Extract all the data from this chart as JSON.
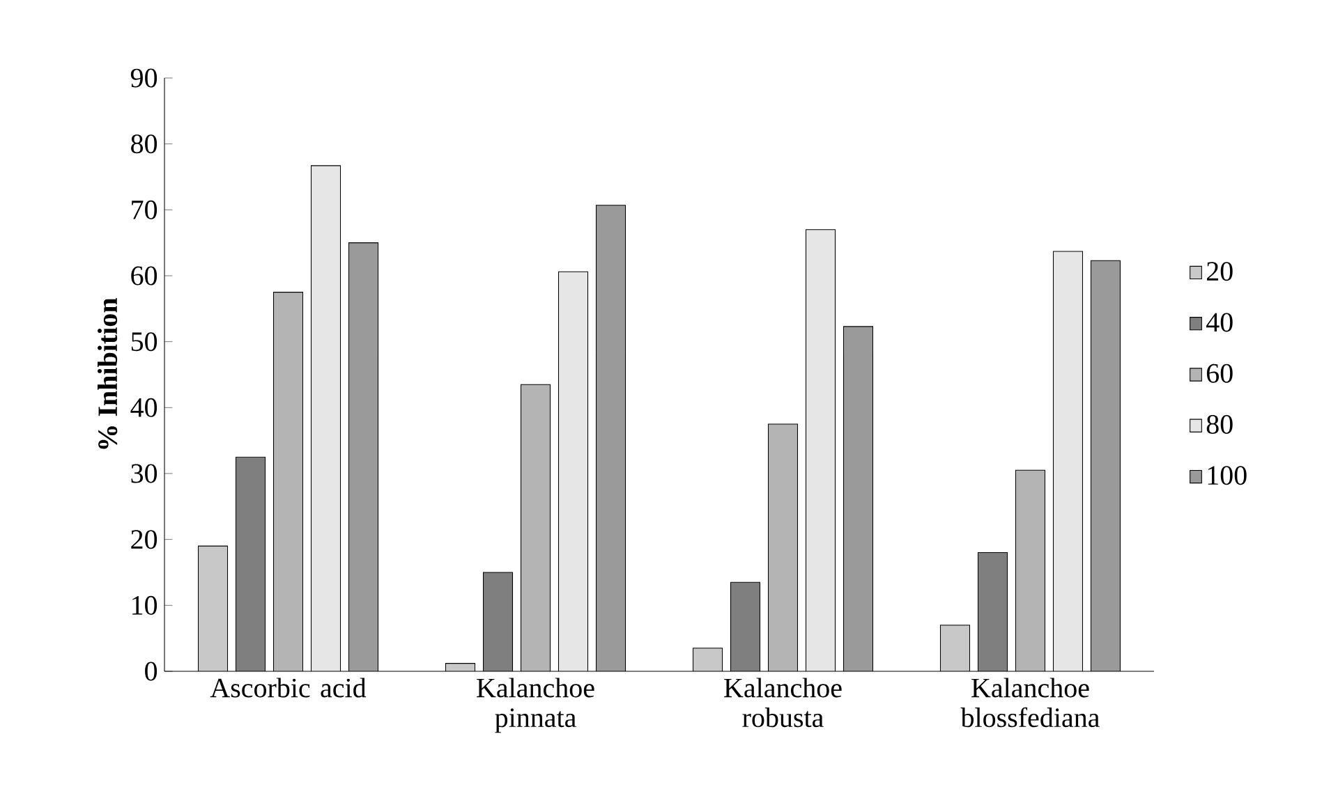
{
  "chart_data": {
    "type": "bar",
    "ylabel": "% Inhibition",
    "categories": [
      "Ascorbic acid",
      "Kalanchoe pinnata",
      "Kalanchoe robusta",
      "Kalanchoe blossfediana"
    ],
    "series": [
      {
        "name": "20",
        "color": "#c8c8c8",
        "values": [
          19,
          1.2,
          3.5,
          7
        ]
      },
      {
        "name": "40",
        "color": "#7f7f7f",
        "values": [
          32.5,
          15,
          13.5,
          18
        ]
      },
      {
        "name": "60",
        "color": "#b4b4b4",
        "values": [
          57.5,
          43.5,
          37.5,
          30.5
        ]
      },
      {
        "name": "80",
        "color": "#e6e6e6",
        "values": [
          76.7,
          60.6,
          67,
          63.7
        ]
      },
      {
        "name": "100",
        "color": "#9a9a9a",
        "values": [
          65,
          70.7,
          52.3,
          62.3
        ]
      }
    ],
    "ylim": [
      0,
      90
    ],
    "yticks": [
      0,
      10,
      20,
      30,
      40,
      50,
      60,
      70,
      80,
      90
    ],
    "legend": "right"
  }
}
